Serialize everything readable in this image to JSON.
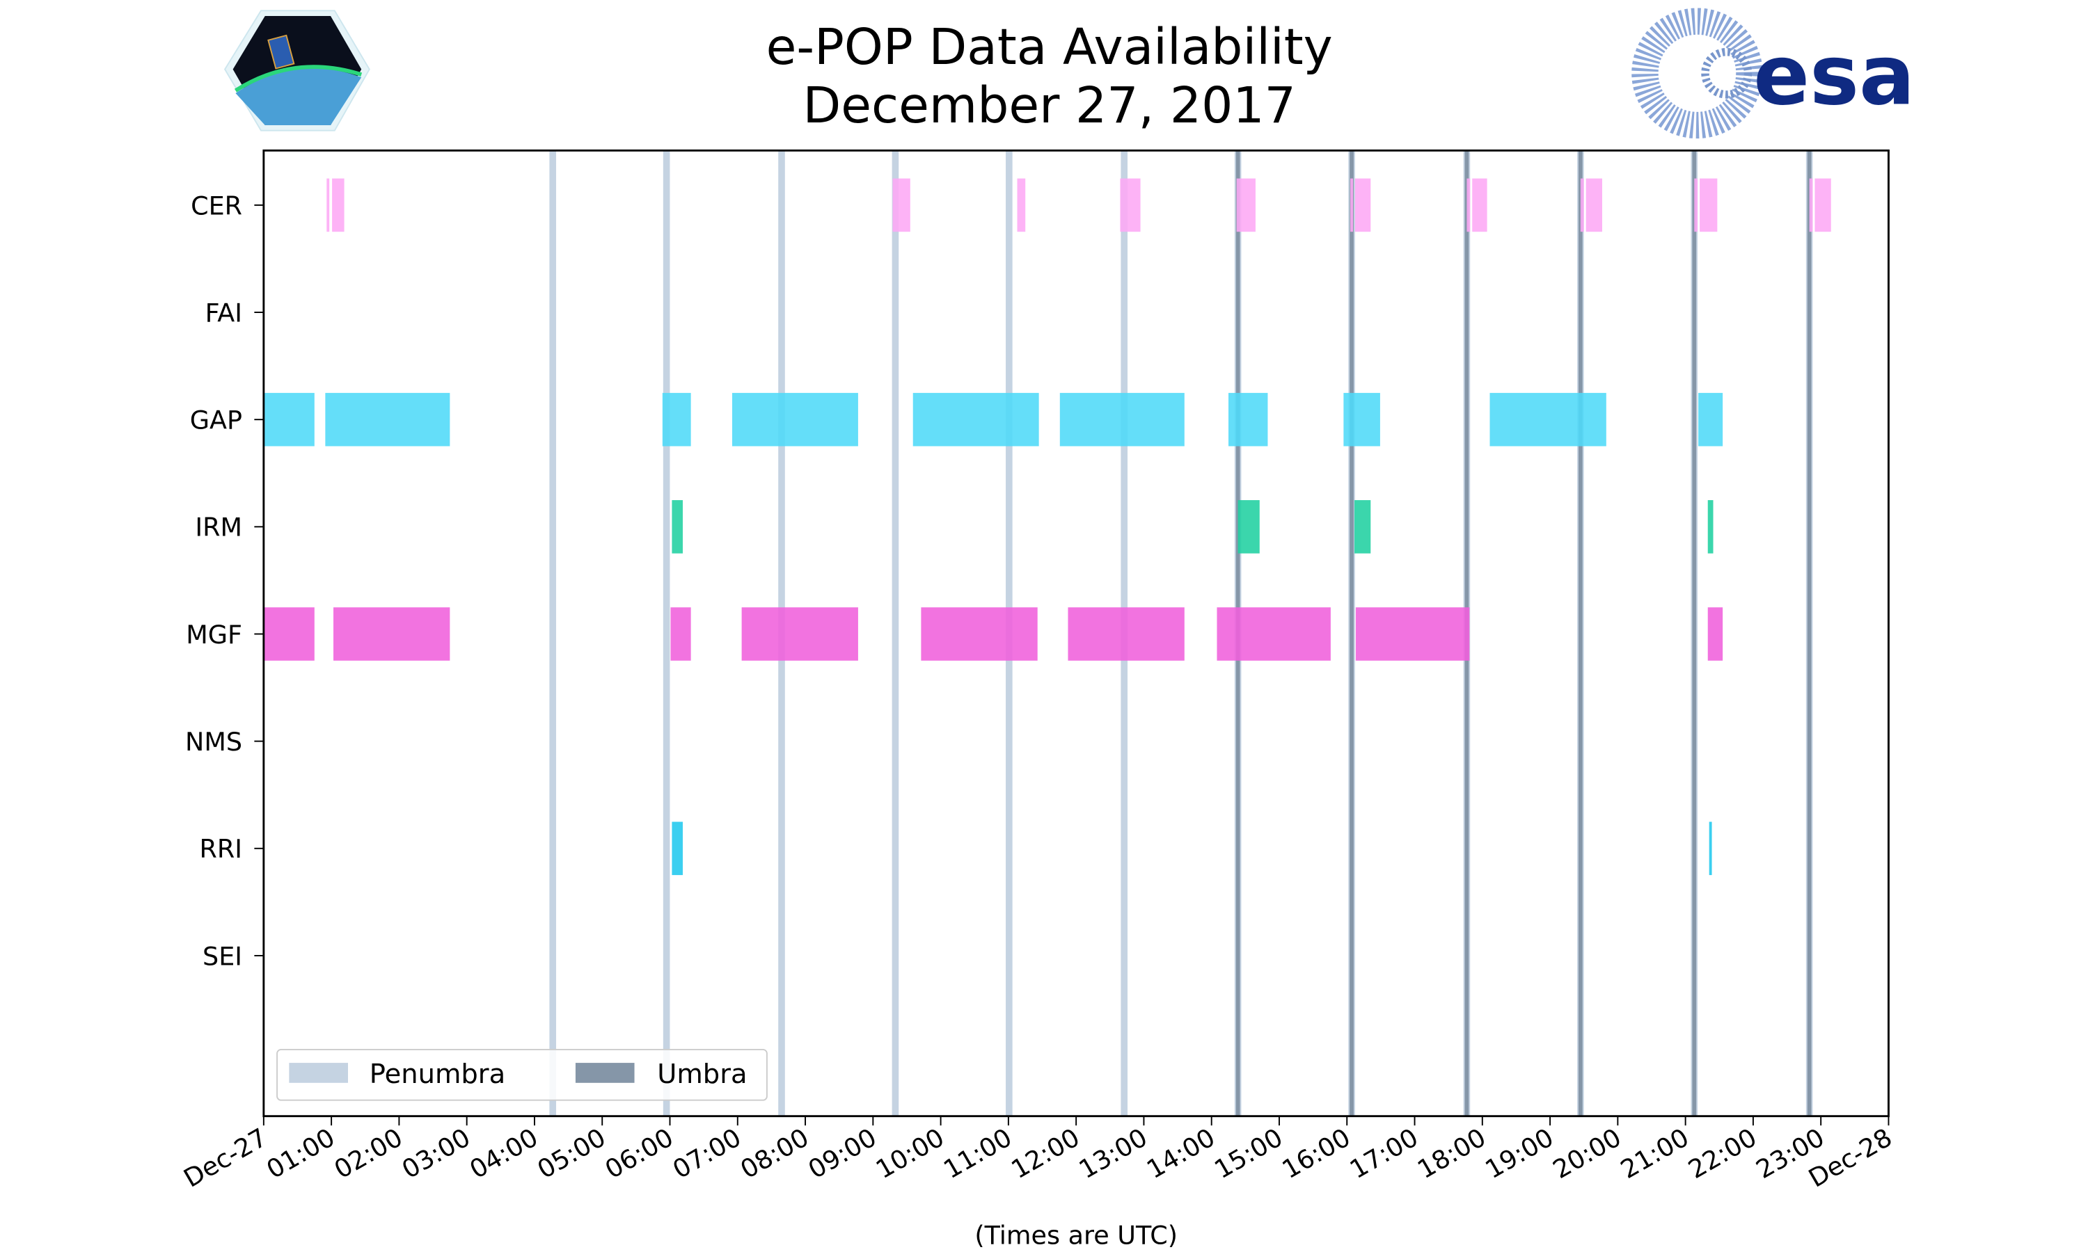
{
  "title_line1": "e-POP Data Availability",
  "title_line2": "December 27, 2017",
  "logos": {
    "left": "CASSIOPE",
    "right": "esa"
  },
  "chart_data": {
    "type": "timeline",
    "title": "e-POP Data Availability December 27, 2017",
    "xlabel": "(Times are UTC)",
    "xlim_hours": [
      0,
      24
    ],
    "x_tick_labels": [
      "Dec-27",
      "01:00",
      "02:00",
      "03:00",
      "04:00",
      "05:00",
      "06:00",
      "07:00",
      "08:00",
      "09:00",
      "10:00",
      "11:00",
      "12:00",
      "13:00",
      "14:00",
      "15:00",
      "16:00",
      "17:00",
      "18:00",
      "19:00",
      "20:00",
      "21:00",
      "22:00",
      "23:00",
      "Dec-28"
    ],
    "instruments": [
      "CER",
      "FAI",
      "GAP",
      "IRM",
      "MGF",
      "NMS",
      "RRI",
      "SEI"
    ],
    "colors": {
      "CER": "#fda9f5",
      "GAP": "#4fdaf8",
      "IRM": "#20d0a0",
      "MGF": "#f060dc",
      "RRI": "#20c8ee",
      "penumbra": "#c5d3e2",
      "umbra": "#8596a8"
    },
    "intervals_hours": {
      "CER": [
        [
          0.93,
          0.97
        ],
        [
          1.01,
          1.19
        ],
        [
          9.29,
          9.55
        ],
        [
          11.13,
          11.25
        ],
        [
          12.65,
          12.95
        ],
        [
          14.37,
          14.65
        ],
        [
          16.05,
          16.09
        ],
        [
          16.12,
          16.35
        ],
        [
          17.77,
          17.82
        ],
        [
          17.85,
          18.07
        ],
        [
          19.45,
          19.5
        ],
        [
          19.53,
          19.77
        ],
        [
          21.13,
          21.18
        ],
        [
          21.21,
          21.47
        ],
        [
          22.83,
          22.88
        ],
        [
          22.91,
          23.15
        ]
      ],
      "FAI": [],
      "GAP": [
        [
          0,
          0.75
        ],
        [
          0.91,
          2.75
        ],
        [
          5.89,
          6.31
        ],
        [
          6.92,
          8.78
        ],
        [
          9.59,
          11.45
        ],
        [
          11.76,
          13.6
        ],
        [
          14.25,
          14.83
        ],
        [
          15.95,
          16.49
        ],
        [
          18.11,
          19.83
        ],
        [
          21.19,
          21.55
        ]
      ],
      "IRM": [
        [
          6.03,
          6.19
        ],
        [
          14.39,
          14.71
        ],
        [
          16.11,
          16.35
        ],
        [
          21.33,
          21.41
        ]
      ],
      "MGF": [
        [
          0,
          0.75
        ],
        [
          1.03,
          2.75
        ],
        [
          6.01,
          6.31
        ],
        [
          7.06,
          8.78
        ],
        [
          9.71,
          11.43
        ],
        [
          11.88,
          13.6
        ],
        [
          14.08,
          15.76
        ],
        [
          16.13,
          17.81
        ],
        [
          21.33,
          21.55
        ]
      ],
      "NMS": [],
      "RRI": [
        [
          6.03,
          6.19
        ],
        [
          21.35,
          21.39
        ]
      ],
      "SEI": []
    },
    "shadow": [
      {
        "hour": 4.27,
        "type": "penumbra"
      },
      {
        "hour": 5.95,
        "type": "penumbra"
      },
      {
        "hour": 7.65,
        "type": "penumbra"
      },
      {
        "hour": 9.33,
        "type": "penumbra"
      },
      {
        "hour": 11.01,
        "type": "penumbra"
      },
      {
        "hour": 12.71,
        "type": "penumbra"
      },
      {
        "hour": 14.39,
        "type": "umbra"
      },
      {
        "hour": 16.07,
        "type": "umbra"
      },
      {
        "hour": 17.77,
        "type": "umbra"
      },
      {
        "hour": 19.45,
        "type": "umbra"
      },
      {
        "hour": 21.13,
        "type": "umbra"
      },
      {
        "hour": 22.83,
        "type": "umbra"
      }
    ],
    "legend": {
      "placement": "lower-left",
      "entries": [
        "Penumbra",
        "Umbra"
      ]
    }
  }
}
